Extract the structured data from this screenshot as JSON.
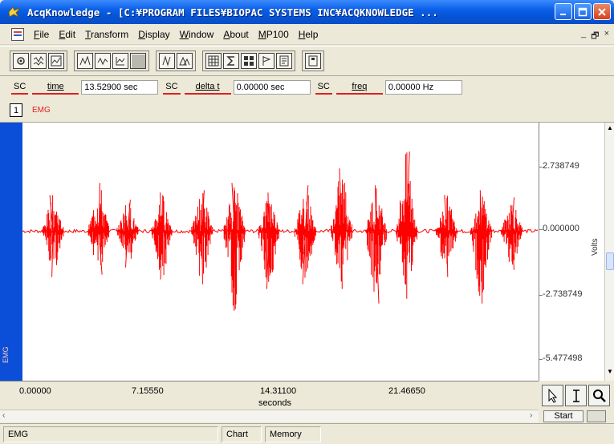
{
  "window": {
    "title": "AcqKnowledge - [C:¥PROGRAM FILES¥BIOPAC SYSTEMS INC¥ACQKNOWLEDGE ..."
  },
  "menu": {
    "items": [
      {
        "label": "File",
        "ul": "F",
        "rest": "ile"
      },
      {
        "label": "Edit",
        "ul": "E",
        "rest": "dit"
      },
      {
        "label": "Transform",
        "ul": "T",
        "rest": "ransform"
      },
      {
        "label": "Display",
        "ul": "D",
        "rest": "isplay"
      },
      {
        "label": "Window",
        "ul": "W",
        "rest": "indow"
      },
      {
        "label": "About",
        "ul": "A",
        "rest": "bout"
      },
      {
        "label": "MP100",
        "ul": "M",
        "rest": "P100"
      },
      {
        "label": "Help",
        "ul": "H",
        "rest": "elp"
      }
    ],
    "mdi_min": "_",
    "mdi_restore": "🗗",
    "mdi_close": "×"
  },
  "measurements": [
    {
      "sc": "SC",
      "name": "time",
      "value": "13.52900 sec"
    },
    {
      "sc": "SC",
      "name": "delta t",
      "value": "0.00000 sec"
    },
    {
      "sc": "SC",
      "name": "freq",
      "value": "0.00000 Hz"
    }
  ],
  "channel": {
    "number": "1",
    "label": "EMG",
    "side_label": "EMG"
  },
  "y_axis": {
    "ticks": [
      "2.738749",
      "0.000000",
      "-2.738749",
      "-5.477498"
    ],
    "unit": "Volts"
  },
  "x_axis": {
    "ticks": [
      "0.00000",
      "7.15550",
      "14.31100",
      "21.46650"
    ],
    "unit": "seconds"
  },
  "cursor_tools": [
    "arrow-cursor",
    "i-beam-cursor",
    "zoom-cursor"
  ],
  "start_button": "Start",
  "status": {
    "channel": "EMG",
    "mode": "Chart",
    "storage": "Memory"
  },
  "colors": {
    "signal": "#ff0000",
    "titlebar": "#0a5fe8",
    "side_strip": "#0b4ed8"
  },
  "chart_data": {
    "type": "line",
    "series": [
      {
        "bursts": [
          {
            "center_s": 1.6,
            "pos_peak": 1.5,
            "neg_peak": -1.9
          },
          {
            "center_s": 4.0,
            "pos_peak": 2.0,
            "neg_peak": -1.8
          },
          {
            "center_s": 5.5,
            "pos_peak": 1.3,
            "neg_peak": -1.5
          },
          {
            "center_s": 7.3,
            "pos_peak": 1.6,
            "neg_peak": -2.0
          },
          {
            "center_s": 9.4,
            "pos_peak": 1.7,
            "neg_peak": -2.2
          },
          {
            "center_s": 11.1,
            "pos_peak": 2.0,
            "neg_peak": -3.3
          },
          {
            "center_s": 12.9,
            "pos_peak": 1.6,
            "neg_peak": -2.4
          },
          {
            "center_s": 14.8,
            "pos_peak": 1.9,
            "neg_peak": -2.2
          },
          {
            "center_s": 16.7,
            "pos_peak": 2.6,
            "neg_peak": -2.4
          },
          {
            "center_s": 18.5,
            "pos_peak": 1.9,
            "neg_peak": -3.0
          },
          {
            "center_s": 20.1,
            "pos_peak": 3.3,
            "neg_peak": -2.8
          },
          {
            "center_s": 22.2,
            "pos_peak": 1.5,
            "neg_peak": -1.9
          },
          {
            "center_s": 24.0,
            "pos_peak": 1.7,
            "neg_peak": -3.0
          },
          {
            "center_s": 25.6,
            "pos_peak": 1.4,
            "neg_peak": -1.6
          }
        ]
      }
    ],
    "xlabel": "seconds",
    "ylabel": "Volts",
    "xlim": [
      0,
      27.0
    ],
    "ylim": [
      -6.2,
      4.5
    ],
    "grid": false
  }
}
